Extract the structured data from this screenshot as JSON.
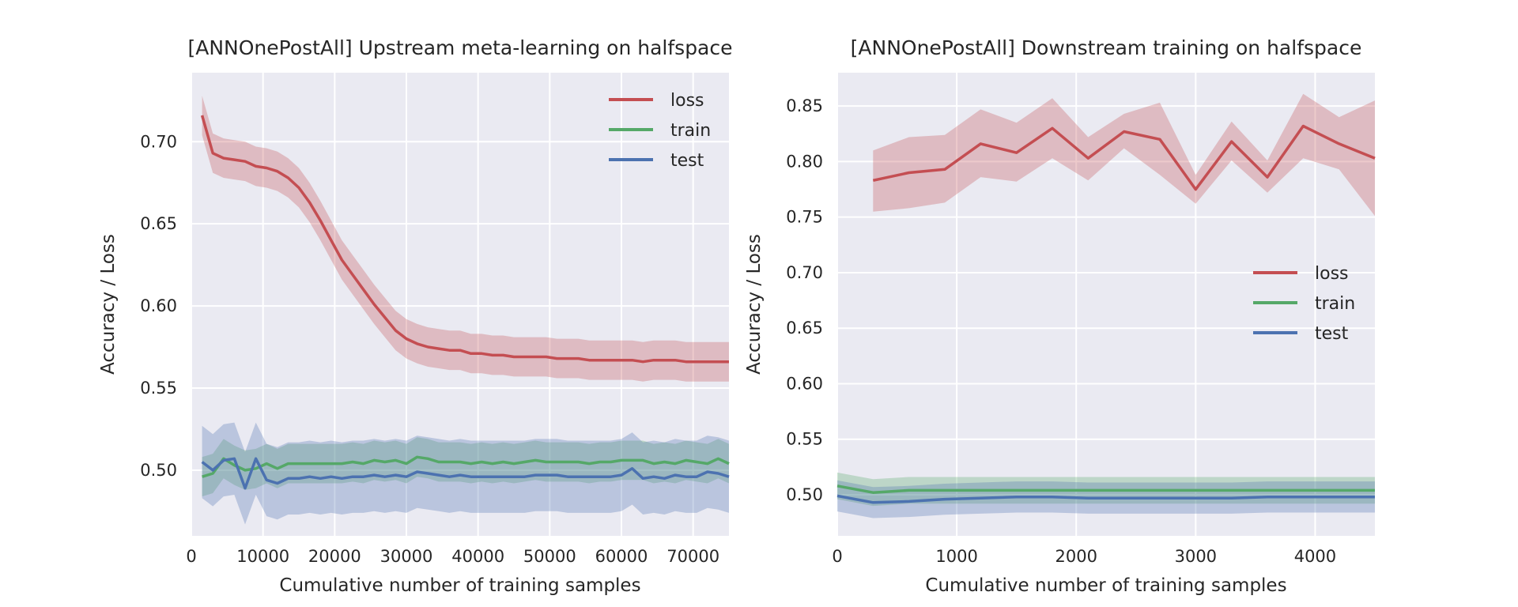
{
  "chart_data": [
    {
      "type": "line",
      "title": "[ANNOnePostAll] Upstream meta-learning on halfspace",
      "xlabel": "Cumulative number of training samples",
      "ylabel": "Accuracy / Loss",
      "xlim": [
        0,
        75000
      ],
      "ylim": [
        0.46,
        0.742
      ],
      "xticks": [
        0,
        10000,
        20000,
        30000,
        40000,
        50000,
        60000,
        70000
      ],
      "yticks": [
        0.5,
        0.55,
        0.6,
        0.65,
        0.7
      ],
      "xtick_labels": [
        "0",
        "10000",
        "20000",
        "30000",
        "40000",
        "50000",
        "60000",
        "70000"
      ],
      "ytick_labels": [
        "0.50",
        "0.55",
        "0.60",
        "0.65",
        "0.70"
      ],
      "grid": true,
      "legend_position": "top-right",
      "x": [
        1500,
        3000,
        4500,
        6000,
        7500,
        9000,
        10500,
        12000,
        13500,
        15000,
        16500,
        18000,
        19500,
        21000,
        22500,
        24000,
        25500,
        27000,
        28500,
        30000,
        31500,
        33000,
        34500,
        36000,
        37500,
        39000,
        40500,
        42000,
        43500,
        45000,
        46500,
        48000,
        49500,
        51000,
        52500,
        54000,
        55500,
        57000,
        58500,
        60000,
        61500,
        63000,
        64500,
        66000,
        67500,
        69000,
        70500,
        72000,
        73500,
        75000
      ],
      "series": [
        {
          "name": "loss",
          "color": "#c44e52",
          "values": [
            0.716,
            0.693,
            0.69,
            0.689,
            0.688,
            0.685,
            0.684,
            0.682,
            0.678,
            0.672,
            0.663,
            0.652,
            0.64,
            0.628,
            0.619,
            0.61,
            0.601,
            0.593,
            0.585,
            0.58,
            0.577,
            0.575,
            0.574,
            0.573,
            0.573,
            0.571,
            0.571,
            0.57,
            0.57,
            0.569,
            0.569,
            0.569,
            0.569,
            0.568,
            0.568,
            0.568,
            0.567,
            0.567,
            0.567,
            0.567,
            0.567,
            0.566,
            0.567,
            0.567,
            0.567,
            0.566,
            0.566,
            0.566,
            0.566,
            0.566
          ],
          "band": 0.012
        },
        {
          "name": "train",
          "color": "#55a868",
          "values": [
            0.496,
            0.498,
            0.507,
            0.503,
            0.5,
            0.501,
            0.504,
            0.501,
            0.504,
            0.504,
            0.504,
            0.504,
            0.504,
            0.504,
            0.505,
            0.504,
            0.506,
            0.505,
            0.506,
            0.504,
            0.508,
            0.507,
            0.505,
            0.505,
            0.505,
            0.504,
            0.505,
            0.504,
            0.505,
            0.504,
            0.505,
            0.506,
            0.505,
            0.505,
            0.505,
            0.505,
            0.504,
            0.505,
            0.505,
            0.506,
            0.506,
            0.506,
            0.504,
            0.505,
            0.504,
            0.506,
            0.505,
            0.504,
            0.507,
            0.504
          ],
          "band": 0.012
        },
        {
          "name": "test",
          "color": "#4c72b0",
          "values": [
            0.505,
            0.5,
            0.506,
            0.507,
            0.489,
            0.507,
            0.494,
            0.492,
            0.495,
            0.495,
            0.496,
            0.495,
            0.496,
            0.495,
            0.496,
            0.496,
            0.497,
            0.496,
            0.497,
            0.496,
            0.499,
            0.498,
            0.497,
            0.496,
            0.497,
            0.496,
            0.496,
            0.496,
            0.496,
            0.496,
            0.496,
            0.497,
            0.497,
            0.497,
            0.496,
            0.496,
            0.496,
            0.496,
            0.496,
            0.497,
            0.501,
            0.495,
            0.496,
            0.495,
            0.497,
            0.496,
            0.496,
            0.499,
            0.498,
            0.496
          ],
          "band": 0.022
        }
      ]
    },
    {
      "type": "line",
      "title": "[ANNOnePostAll] Downstream training on halfspace",
      "xlabel": "Cumulative number of training samples",
      "ylabel": "Accuracy / Loss",
      "xlim": [
        0,
        4500
      ],
      "ylim": [
        0.463,
        0.88
      ],
      "xticks": [
        0,
        1000,
        2000,
        3000,
        4000
      ],
      "yticks": [
        0.5,
        0.55,
        0.6,
        0.65,
        0.7,
        0.75,
        0.8,
        0.85
      ],
      "xtick_labels": [
        "0",
        "1000",
        "2000",
        "3000",
        "4000"
      ],
      "ytick_labels": [
        "0.50",
        "0.55",
        "0.60",
        "0.65",
        "0.70",
        "0.75",
        "0.80",
        "0.85"
      ],
      "grid": true,
      "legend_position": "center-right",
      "x": [
        0,
        300,
        600,
        900,
        1200,
        1500,
        1800,
        2100,
        2400,
        2700,
        3000,
        3300,
        3600,
        3900,
        4200,
        4500
      ],
      "series": [
        {
          "name": "loss",
          "color": "#c44e52",
          "x": [
            300,
            600,
            900,
            1200,
            1500,
            1800,
            2100,
            2400,
            2700,
            3000,
            3300,
            3600,
            3900,
            4200,
            4500
          ],
          "values": [
            0.783,
            0.79,
            0.793,
            0.816,
            0.808,
            0.83,
            0.803,
            0.827,
            0.82,
            0.775,
            0.818,
            0.786,
            0.832,
            0.816,
            0.803
          ],
          "lower": [
            0.755,
            0.758,
            0.763,
            0.786,
            0.782,
            0.803,
            0.783,
            0.812,
            0.788,
            0.762,
            0.801,
            0.772,
            0.803,
            0.793,
            0.751
          ],
          "upper": [
            0.81,
            0.822,
            0.824,
            0.847,
            0.835,
            0.857,
            0.822,
            0.843,
            0.853,
            0.788,
            0.836,
            0.801,
            0.861,
            0.84,
            0.855
          ]
        },
        {
          "name": "train",
          "color": "#55a868",
          "values": [
            0.508,
            0.502,
            0.504,
            0.504,
            0.504,
            0.504,
            0.504,
            0.504,
            0.504,
            0.504,
            0.504,
            0.504,
            0.504,
            0.504,
            0.504,
            0.504
          ],
          "band": 0.012
        },
        {
          "name": "test",
          "color": "#4c72b0",
          "values": [
            0.499,
            0.493,
            0.494,
            0.496,
            0.497,
            0.498,
            0.498,
            0.497,
            0.497,
            0.497,
            0.497,
            0.497,
            0.498,
            0.498,
            0.498,
            0.498
          ],
          "band": 0.014
        }
      ]
    }
  ]
}
